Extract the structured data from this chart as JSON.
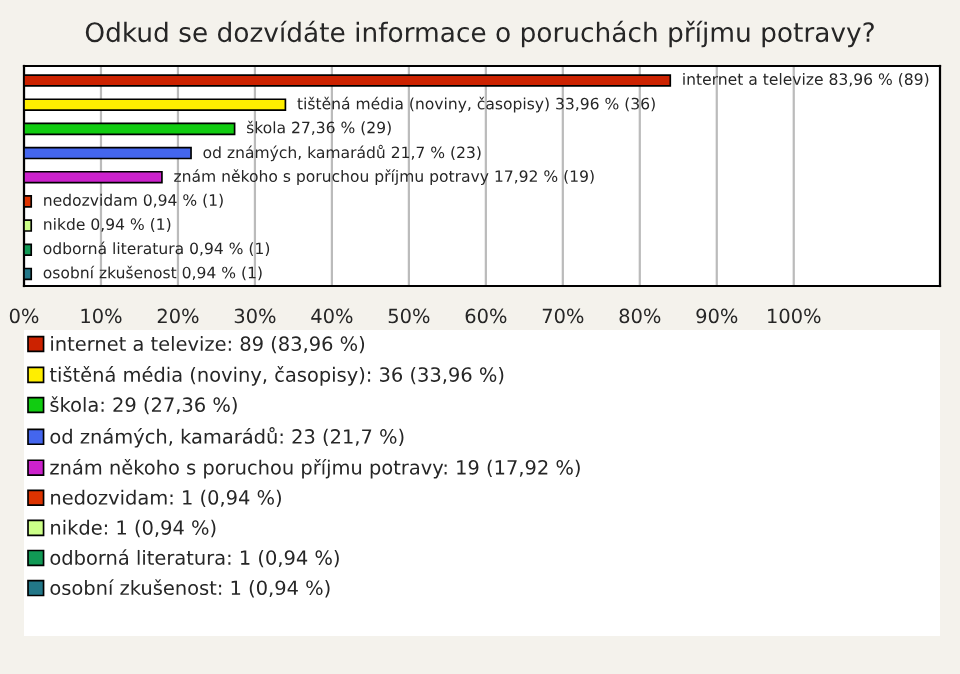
{
  "chart_data": {
    "type": "bar",
    "orientation": "horizontal",
    "title": "Odkud se dozvídáte informace o poruchách příjmu potravy?",
    "categories": [
      "internet a televize",
      "tištěná média (noviny, časopisy)",
      "škola",
      "od známých, kamarádů",
      "znám někoho s poruchou příjmu potravy",
      "nedozvidam",
      "nikde",
      "odborná literatura",
      "osobní zkušenost"
    ],
    "series": [
      {
        "name": "internet a televize: 89 (83,96 %)",
        "color": "#cc2200",
        "values": [
          83.96,
          null,
          null,
          null,
          null,
          null,
          null,
          null,
          null
        ],
        "value_labels": [
          "83,96 % (89)",
          null,
          null,
          null,
          null,
          null,
          null,
          null,
          null
        ]
      },
      {
        "name": "tištěná média (noviny, časopisy): 36 (33,96 %)",
        "color": "#ffee00",
        "values": [
          null,
          33.96,
          null,
          null,
          null,
          null,
          null,
          null,
          null
        ],
        "value_labels": [
          null,
          "33,96 % (36)",
          null,
          null,
          null,
          null,
          null,
          null,
          null
        ]
      },
      {
        "name": "škola: 29 (27,36 %)",
        "color": "#11cc11",
        "values": [
          null,
          null,
          27.36,
          null,
          null,
          null,
          null,
          null,
          null
        ],
        "value_labels": [
          null,
          null,
          "27,36 % (29)",
          null,
          null,
          null,
          null,
          null,
          null
        ]
      },
      {
        "name": "od známých, kamarádů: 23 (21,7 %)",
        "color": "#4466ee",
        "values": [
          null,
          null,
          null,
          21.7,
          null,
          null,
          null,
          null,
          null
        ],
        "value_labels": [
          null,
          null,
          null,
          "21,7 % (23)",
          null,
          null,
          null,
          null,
          null
        ]
      },
      {
        "name": "znám někoho s poruchou příjmu potravy: 19 (17,92 %)",
        "color": "#cc22cc",
        "values": [
          null,
          null,
          null,
          null,
          17.92,
          null,
          null,
          null,
          null
        ],
        "value_labels": [
          null,
          null,
          null,
          null,
          "17,92 % (19)",
          null,
          null,
          null,
          null
        ]
      },
      {
        "name": "nedozvidam: 1 (0,94 %)",
        "color": "#dd3300",
        "values": [
          null,
          null,
          null,
          null,
          null,
          0.94,
          null,
          null,
          null
        ],
        "value_labels": [
          null,
          null,
          null,
          null,
          null,
          "0,94 % (1)",
          null,
          null,
          null
        ]
      },
      {
        "name": "nikde: 1 (0,94 %)",
        "color": "#ccff88",
        "values": [
          null,
          null,
          null,
          null,
          null,
          null,
          0.94,
          null,
          null
        ],
        "value_labels": [
          null,
          null,
          null,
          null,
          null,
          null,
          "0,94 % (1)",
          null,
          null
        ]
      },
      {
        "name": "odborná literatura: 1 (0,94 %)",
        "color": "#119955",
        "values": [
          null,
          null,
          null,
          null,
          null,
          null,
          null,
          0.94,
          null
        ],
        "value_labels": [
          null,
          null,
          null,
          null,
          null,
          null,
          null,
          "0,94 % (1)",
          null
        ]
      },
      {
        "name": "osobní zkušenost: 1 (0,94 %)",
        "color": "#227788",
        "values": [
          null,
          null,
          null,
          null,
          null,
          null,
          null,
          null,
          0.94
        ],
        "value_labels": [
          null,
          null,
          null,
          null,
          null,
          null,
          null,
          null,
          "0,94 % (1)"
        ]
      }
    ],
    "xlim": [
      0,
      119
    ],
    "xticks": [
      {
        "value": 0,
        "label": "0%"
      },
      {
        "value": 10,
        "label": "10%"
      },
      {
        "value": 20,
        "label": "20%"
      },
      {
        "value": 30,
        "label": "30%"
      },
      {
        "value": 40,
        "label": "40%"
      },
      {
        "value": 50,
        "label": "50%"
      },
      {
        "value": 60,
        "label": "60%"
      },
      {
        "value": 70,
        "label": "70%"
      },
      {
        "value": 80,
        "label": "80%"
      },
      {
        "value": 90,
        "label": "90%"
      },
      {
        "value": 100,
        "label": "100%"
      }
    ],
    "grid": "x",
    "tick_labels": "x",
    "legend": "bottom"
  }
}
